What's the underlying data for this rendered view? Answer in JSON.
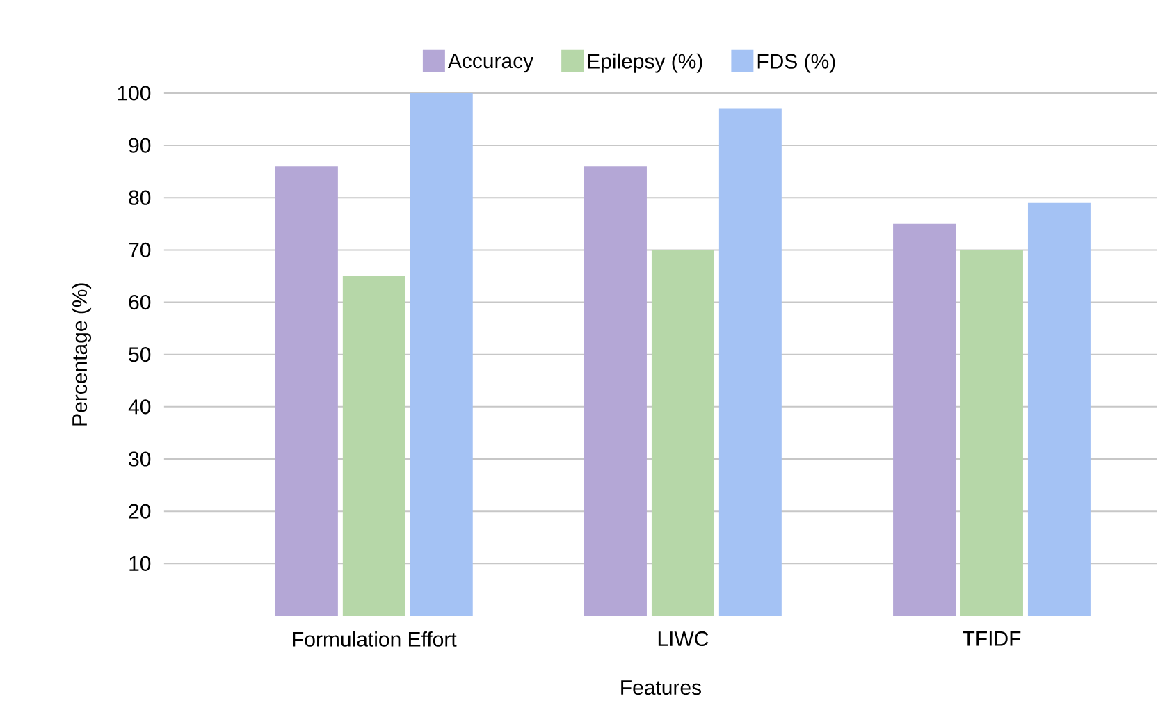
{
  "chart_data": {
    "type": "bar",
    "xlabel": "Features",
    "ylabel": "Percentage (%)",
    "categories": [
      "Formulation Effort",
      "LIWC",
      "TFIDF"
    ],
    "series": [
      {
        "name": "Accuracy",
        "color": "#b4a7d6",
        "values": [
          86,
          86,
          75
        ]
      },
      {
        "name": "Epilepsy (%)",
        "color": "#b6d7a8",
        "values": [
          65,
          70,
          70
        ]
      },
      {
        "name": "FDS (%)",
        "color": "#a4c2f4",
        "values": [
          100,
          97,
          79
        ]
      }
    ],
    "ylim": [
      0,
      100
    ],
    "yticks": [
      10,
      20,
      30,
      40,
      50,
      60,
      70,
      80,
      90,
      100
    ],
    "grid": "y",
    "legend": "top"
  }
}
